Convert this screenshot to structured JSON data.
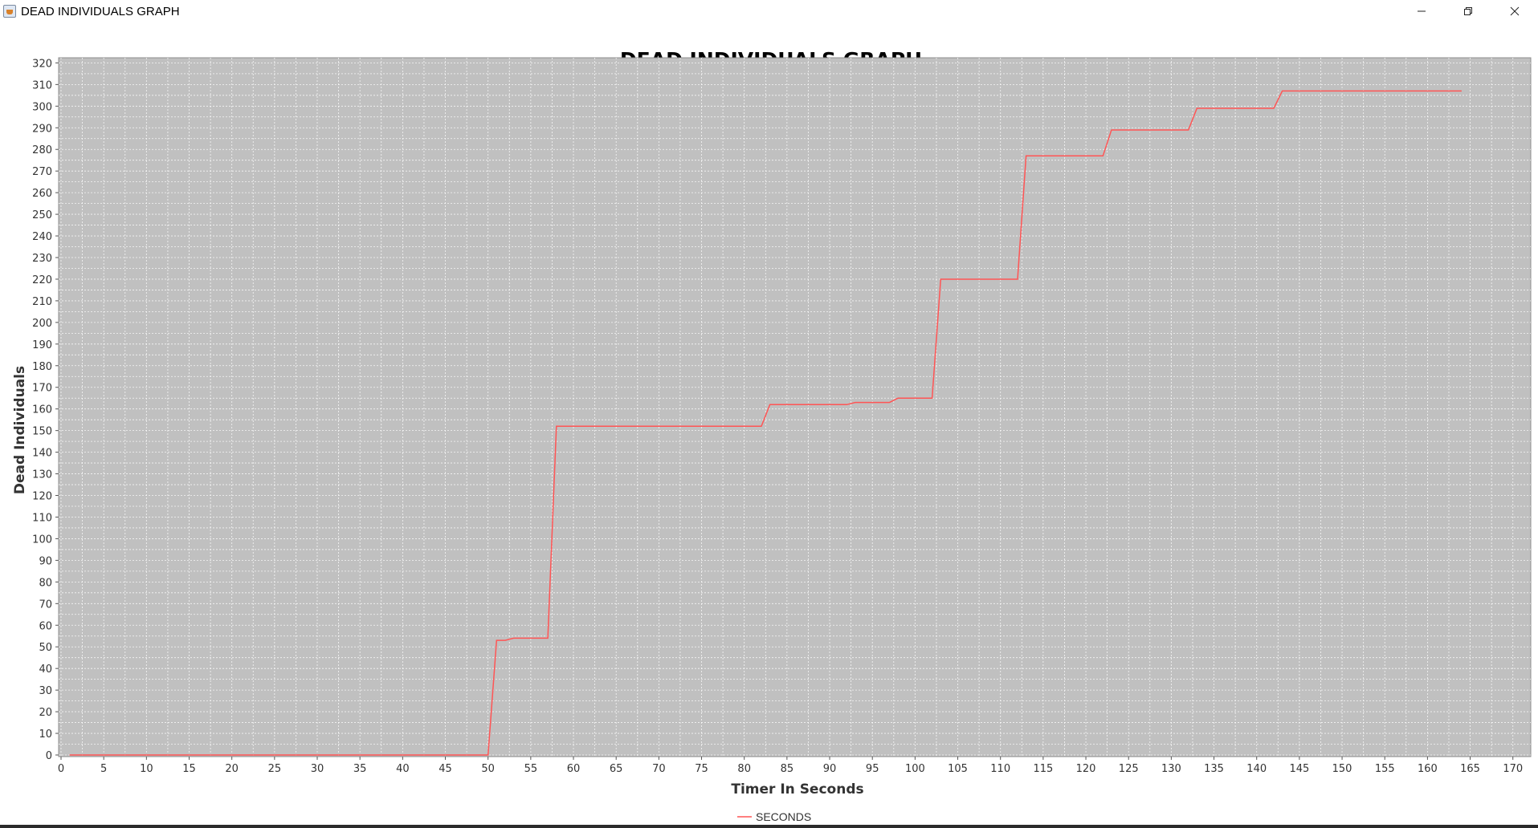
{
  "window": {
    "title": "DEAD INDIVIDUALS GRAPH",
    "controls": {
      "minimize_icon": "minimize-icon",
      "maximize_icon": "restore-icon",
      "close_icon": "close-icon"
    }
  },
  "chart_data": {
    "type": "line",
    "title": "DEAD INDIVIDUALS GRAPH",
    "xlabel": "Timer In Seconds",
    "ylabel": "Dead Individuals",
    "xlim": [
      0,
      172
    ],
    "ylim": [
      0,
      322
    ],
    "x_ticks": [
      0,
      5,
      10,
      15,
      20,
      25,
      30,
      35,
      40,
      45,
      50,
      55,
      60,
      65,
      70,
      75,
      80,
      85,
      90,
      95,
      100,
      105,
      110,
      115,
      120,
      125,
      130,
      135,
      140,
      145,
      150,
      155,
      160,
      165,
      170
    ],
    "y_ticks": [
      0,
      10,
      20,
      30,
      40,
      50,
      60,
      70,
      80,
      90,
      100,
      110,
      120,
      130,
      140,
      150,
      160,
      170,
      180,
      190,
      200,
      210,
      220,
      230,
      240,
      250,
      260,
      270,
      280,
      290,
      300,
      310,
      320
    ],
    "grid": true,
    "legend_position": "bottom",
    "colors": {
      "plot_background": "#c0c0c0",
      "grid": "#ffffff",
      "series": "#ff5555"
    },
    "series": [
      {
        "name": "SECONDS",
        "x": [
          1,
          50,
          51,
          52,
          53,
          57,
          58,
          82,
          83,
          92,
          93,
          97,
          98,
          102,
          103,
          112,
          113,
          122,
          123,
          132,
          133,
          142,
          143,
          164
        ],
        "y": [
          0,
          0,
          53,
          53,
          54,
          54,
          152,
          152,
          162,
          162,
          163,
          163,
          165,
          165,
          220,
          220,
          277,
          277,
          289,
          289,
          299,
          299,
          307,
          307
        ]
      }
    ]
  }
}
